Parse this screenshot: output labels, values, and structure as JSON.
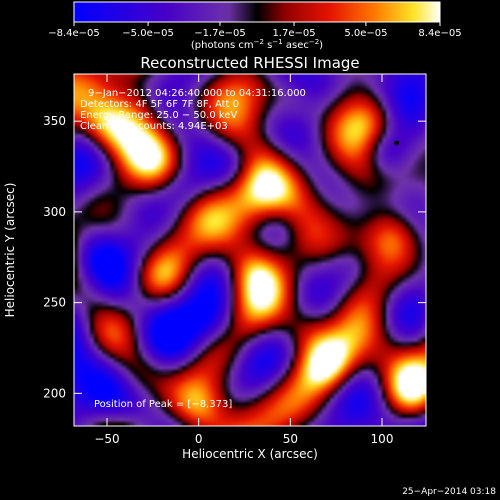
{
  "chart_data": {
    "type": "heatmap",
    "title": "Reconstructed RHESSI Image",
    "xlabel": "Heliocentric X (arcsec)",
    "ylabel": "Heliocentric Y (arcsec)",
    "xlim": [
      -68,
      124
    ],
    "ylim": [
      182,
      376
    ],
    "x_ticks": [
      -50,
      0,
      50,
      100
    ],
    "x_tick_labels": [
      "−50",
      "0",
      "50",
      "100"
    ],
    "y_ticks": [
      200,
      250,
      300,
      350
    ],
    "y_tick_labels": [
      "200",
      "250",
      "300",
      "350"
    ],
    "colorbar": {
      "range": [
        -8.4e-05,
        8.4e-05
      ],
      "tick_values": [
        -8.4e-05,
        -5e-05,
        -1.7e-05,
        1.7e-05,
        5e-05,
        8.4e-05
      ],
      "tick_labels": [
        "−8.4e−05",
        "−5.0e−05",
        "−1.7e−05",
        "1.7e−05",
        "5.0e−05",
        "8.4e−05"
      ],
      "unit_parts": [
        "(photons cm",
        "−2",
        " s",
        "−1",
        " asec",
        "−2",
        ")"
      ],
      "colormap": "blue-purple-red-orange-yellow-white"
    },
    "annotations": [
      "9−Jan−2012 04:26:40.000 to 04:31:16.000",
      "Detectors: 4F 5F 6F 7F 8F, Att 0",
      "Energy Range: 25.0 − 50.0 keV",
      "Clean    Total counts: 4.94E+03"
    ],
    "peak_label": "Position of Peak = [−8,373]",
    "peak": {
      "x": 108,
      "y": 338
    },
    "timestamp": "25−Apr−2014 03:18"
  }
}
